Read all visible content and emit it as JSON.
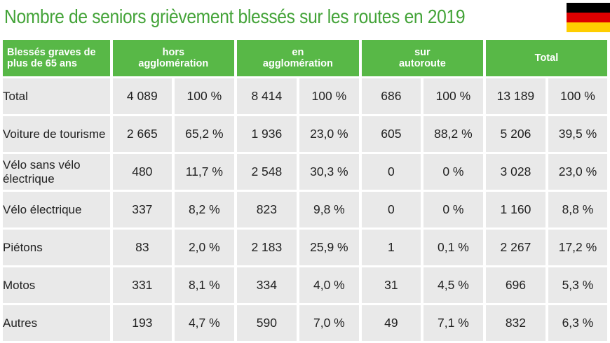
{
  "title": "Nombre de seniors grièvement blessés sur les routes en 2019",
  "flag": {
    "name": "germany-flag",
    "colors": [
      "#000000",
      "#dd0000",
      "#ffce00"
    ]
  },
  "header": {
    "corner_line1": "Blessés graves de",
    "corner_line2": "plus de 65 ans",
    "col1_line1": "hors",
    "col1_line2": "agglomération",
    "col2_line1": "en",
    "col2_line2": "agglomération",
    "col3_line1": "sur",
    "col3_line2": "autoroute",
    "col4": "Total"
  },
  "rows": [
    {
      "label": "Total",
      "label2": "",
      "hors_n": "4 089",
      "hors_p": "100 %",
      "en_n": "8 414",
      "en_p": "100 %",
      "auto_n": "686",
      "auto_p": "100 %",
      "tot_n": "13 189",
      "tot_p": "100 %"
    },
    {
      "label": "Voiture de tourisme",
      "label2": "",
      "hors_n": "2 665",
      "hors_p": "65,2 %",
      "en_n": "1 936",
      "en_p": "23,0 %",
      "auto_n": "605",
      "auto_p": "88,2 %",
      "tot_n": "5 206",
      "tot_p": "39,5 %"
    },
    {
      "label": "Vélo sans vélo",
      "label2": "électrique",
      "hors_n": "480",
      "hors_p": "11,7 %",
      "en_n": "2 548",
      "en_p": "30,3 %",
      "auto_n": "0",
      "auto_p": "0 %",
      "tot_n": "3 028",
      "tot_p": "23,0 %"
    },
    {
      "label": "Vélo électrique",
      "label2": "",
      "hors_n": "337",
      "hors_p": "8,2 %",
      "en_n": "823",
      "en_p": "9,8 %",
      "auto_n": "0",
      "auto_p": "0 %",
      "tot_n": "1 160",
      "tot_p": "8,8 %"
    },
    {
      "label": "Piétons",
      "label2": "",
      "hors_n": "83",
      "hors_p": "2,0 %",
      "en_n": "2 183",
      "en_p": "25,9 %",
      "auto_n": "1",
      "auto_p": "0,1 %",
      "tot_n": "2 267",
      "tot_p": "17,2 %"
    },
    {
      "label": "Motos",
      "label2": "",
      "hors_n": "331",
      "hors_p": "8,1 %",
      "en_n": "334",
      "en_p": "4,0 %",
      "auto_n": "31",
      "auto_p": "4,5 %",
      "tot_n": "696",
      "tot_p": "5,3 %"
    },
    {
      "label": "Autres",
      "label2": "",
      "hors_n": "193",
      "hors_p": "4,7 %",
      "en_n": "590",
      "en_p": "7,0 %",
      "auto_n": "49",
      "auto_p": "7,1 %",
      "tot_n": "832",
      "tot_p": "6,3 %"
    }
  ]
}
